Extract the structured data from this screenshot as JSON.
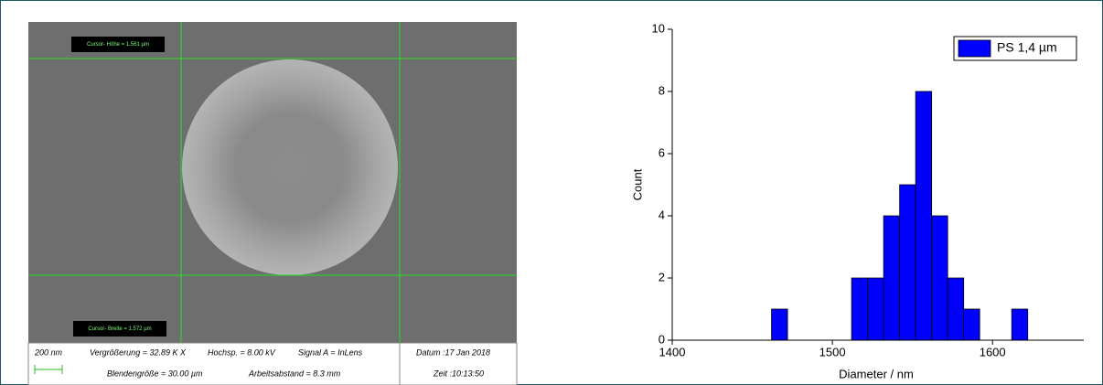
{
  "sem_image": {
    "cursor_height": "Cursor- Höhe = 1.561 µm",
    "cursor_width": "Cursor- Breite = 1.572 µm",
    "scale_bar": "200 nm",
    "magnification": "Vergrößerung =  32.89 K X",
    "voltage": "Hochsp. =  8.00 kV",
    "signal": "Signal A = InLens",
    "date": "Datum :17 Jan 2018",
    "aperture": "Blendengröße = 30.00 µm",
    "working_distance": "Arbeitsabstand =  8.3 mm",
    "time": "Zeit :10:13:50"
  },
  "chart_data": {
    "type": "histogram",
    "bins": [
      1462,
      1472,
      1482,
      1492,
      1502,
      1512,
      1522,
      1532,
      1542,
      1552,
      1562,
      1572,
      1582,
      1592,
      1602,
      1612,
      1622
    ],
    "series": [
      {
        "name": "PS 1,4 µm",
        "color": "#0000ff",
        "values": [
          1,
          0,
          0,
          0,
          0,
          2,
          2,
          4,
          5,
          8,
          4,
          2,
          1,
          0,
          0,
          1
        ]
      }
    ],
    "xlabel": "Diameter / nm",
    "ylabel": "Count",
    "xlim": [
      1400,
      1657
    ],
    "xticks": [
      1400,
      1500,
      1600
    ],
    "ylim": [
      0,
      10
    ],
    "yticks": [
      0,
      2,
      4,
      6,
      8,
      10
    ],
    "legend": "upper right"
  }
}
